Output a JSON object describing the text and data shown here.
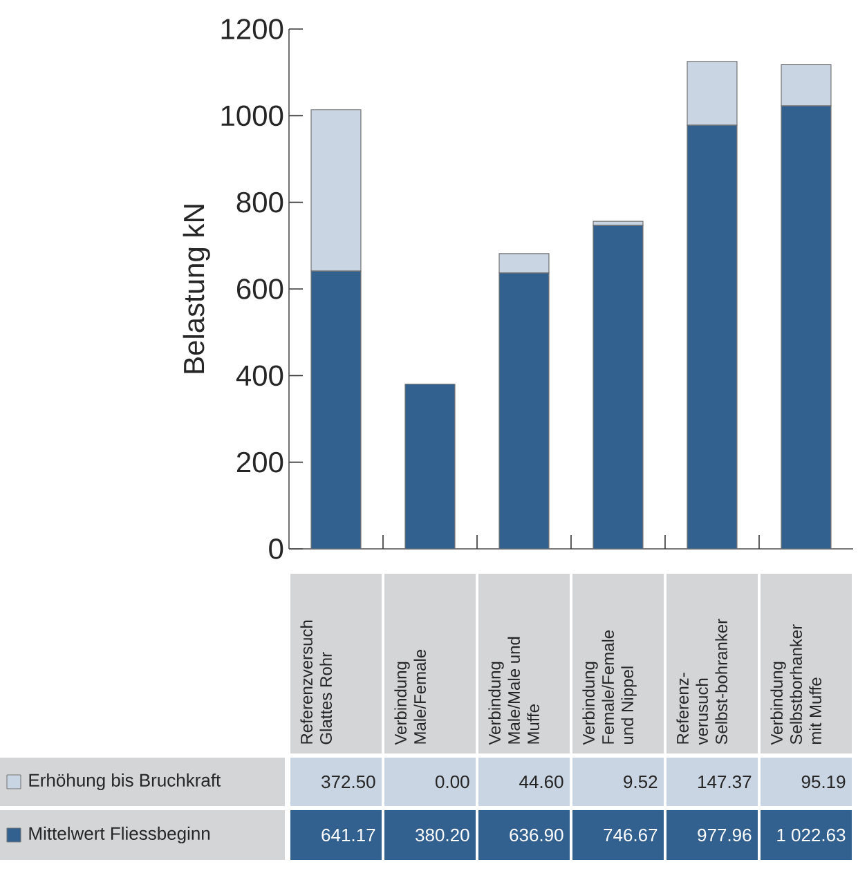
{
  "chart_data": {
    "type": "bar",
    "stacked": true,
    "ylabel": "Belastung kN",
    "ylim": [
      0,
      1200
    ],
    "yticks": [
      0,
      200,
      400,
      600,
      800,
      1000,
      1200
    ],
    "legend": "bottom",
    "categories": [
      "Referenzversuch Glattes Rohr",
      "Verbindung Male/Female",
      "Verbindung Male/Male und Muffe",
      "Verbindung Female/Female und Nippel",
      "Referenz-verusuch Selbst-bohranker",
      "Verbindung Selbstborhanker mit Muffe"
    ],
    "series": [
      {
        "name": "Mittelwert Fliessbeginn",
        "color": "#33618f",
        "values": [
          641.17,
          380.2,
          636.9,
          746.67,
          977.96,
          1022.63
        ],
        "value_labels": [
          "641.17",
          "380.20",
          "636.90",
          "746.67",
          "977.96",
          "1 022.63"
        ]
      },
      {
        "name": "Erhöhung bis Bruchkraft",
        "color": "#c9d5e2",
        "values": [
          372.5,
          0.0,
          44.6,
          9.52,
          147.37,
          95.19
        ],
        "value_labels": [
          "372.50",
          "0.00",
          "44.60",
          "9.52",
          "147.37",
          "95.19"
        ]
      }
    ]
  }
}
